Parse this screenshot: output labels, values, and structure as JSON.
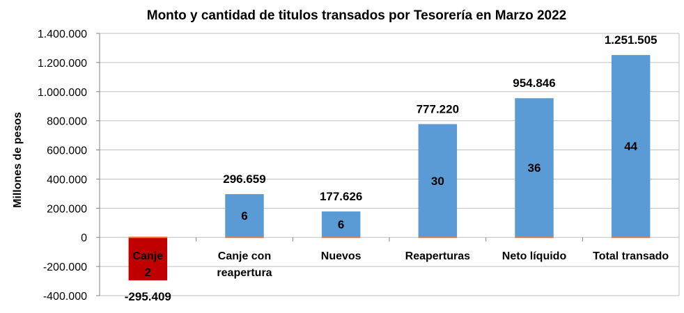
{
  "chart_data": {
    "type": "bar",
    "title": "Monto y cantidad  de titulos transados por Tesorería en Marzo 2022",
    "ylabel": "Millones de pesos",
    "xlabel": "",
    "ylim": [
      -400000,
      1400000
    ],
    "ytick_step": 200000,
    "yticks": [
      "-400.000",
      "-200.000",
      "0",
      "200.000",
      "400.000",
      "600.000",
      "800.000",
      "1.000.000",
      "1.200.000",
      "1.400.000"
    ],
    "grid": true,
    "categories": [
      "Canje",
      "Canje con reapertura",
      "Nuevos",
      "Reaperturas",
      "Neto líquido",
      "Total transado"
    ],
    "category_labels": [
      [
        "Canje"
      ],
      [
        "Canje con",
        "reapertura"
      ],
      [
        "Nuevos"
      ],
      [
        "Reaperturas"
      ],
      [
        "Neto líquido"
      ],
      [
        "Total transado"
      ]
    ],
    "values": [
      -295409,
      296659,
      177626,
      777220,
      954846,
      1251505
    ],
    "value_labels": [
      "-295.409",
      "296.659",
      "177.626",
      "777.220",
      "954.846",
      "1.251.505"
    ],
    "counts": [
      "2",
      "6",
      "6",
      "30",
      "36",
      "44"
    ],
    "colors": [
      "#C00000",
      "#5B9BD5",
      "#5B9BD5",
      "#5B9BD5",
      "#5B9BD5",
      "#5B9BD5"
    ],
    "baseline_color": "#ED7D31",
    "grid_color": "#BFBFBF"
  }
}
